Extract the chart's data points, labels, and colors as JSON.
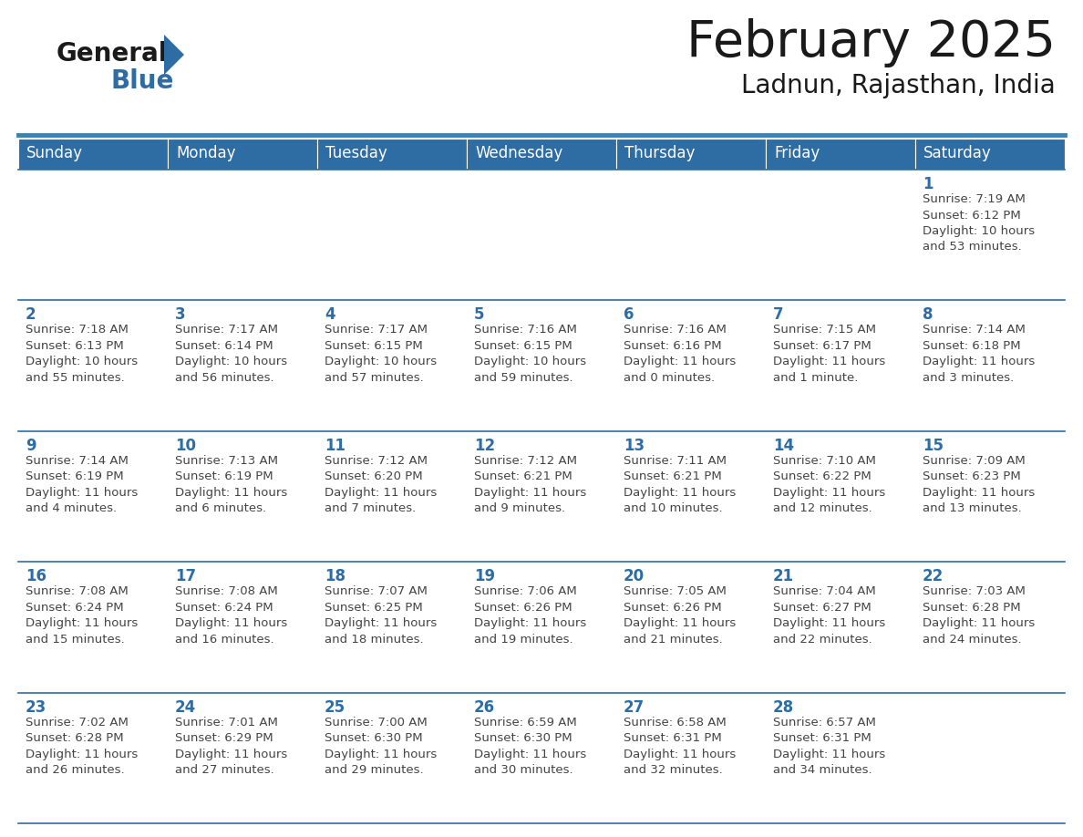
{
  "title": "February 2025",
  "subtitle": "Ladnun, Rajasthan, India",
  "header_bg_color": "#2E6DA4",
  "header_text_color": "#FFFFFF",
  "day_number_color": "#2E6DA4",
  "text_color": "#444444",
  "line_color": "#2E6DA4",
  "separator_color": "#4080B0",
  "bg_color": "#FFFFFF",
  "days_of_week": [
    "Sunday",
    "Monday",
    "Tuesday",
    "Wednesday",
    "Thursday",
    "Friday",
    "Saturday"
  ],
  "weeks": [
    [
      {
        "day": 0,
        "info": ""
      },
      {
        "day": 0,
        "info": ""
      },
      {
        "day": 0,
        "info": ""
      },
      {
        "day": 0,
        "info": ""
      },
      {
        "day": 0,
        "info": ""
      },
      {
        "day": 0,
        "info": ""
      },
      {
        "day": 1,
        "info": "Sunrise: 7:19 AM\nSunset: 6:12 PM\nDaylight: 10 hours\nand 53 minutes."
      }
    ],
    [
      {
        "day": 2,
        "info": "Sunrise: 7:18 AM\nSunset: 6:13 PM\nDaylight: 10 hours\nand 55 minutes."
      },
      {
        "day": 3,
        "info": "Sunrise: 7:17 AM\nSunset: 6:14 PM\nDaylight: 10 hours\nand 56 minutes."
      },
      {
        "day": 4,
        "info": "Sunrise: 7:17 AM\nSunset: 6:15 PM\nDaylight: 10 hours\nand 57 minutes."
      },
      {
        "day": 5,
        "info": "Sunrise: 7:16 AM\nSunset: 6:15 PM\nDaylight: 10 hours\nand 59 minutes."
      },
      {
        "day": 6,
        "info": "Sunrise: 7:16 AM\nSunset: 6:16 PM\nDaylight: 11 hours\nand 0 minutes."
      },
      {
        "day": 7,
        "info": "Sunrise: 7:15 AM\nSunset: 6:17 PM\nDaylight: 11 hours\nand 1 minute."
      },
      {
        "day": 8,
        "info": "Sunrise: 7:14 AM\nSunset: 6:18 PM\nDaylight: 11 hours\nand 3 minutes."
      }
    ],
    [
      {
        "day": 9,
        "info": "Sunrise: 7:14 AM\nSunset: 6:19 PM\nDaylight: 11 hours\nand 4 minutes."
      },
      {
        "day": 10,
        "info": "Sunrise: 7:13 AM\nSunset: 6:19 PM\nDaylight: 11 hours\nand 6 minutes."
      },
      {
        "day": 11,
        "info": "Sunrise: 7:12 AM\nSunset: 6:20 PM\nDaylight: 11 hours\nand 7 minutes."
      },
      {
        "day": 12,
        "info": "Sunrise: 7:12 AM\nSunset: 6:21 PM\nDaylight: 11 hours\nand 9 minutes."
      },
      {
        "day": 13,
        "info": "Sunrise: 7:11 AM\nSunset: 6:21 PM\nDaylight: 11 hours\nand 10 minutes."
      },
      {
        "day": 14,
        "info": "Sunrise: 7:10 AM\nSunset: 6:22 PM\nDaylight: 11 hours\nand 12 minutes."
      },
      {
        "day": 15,
        "info": "Sunrise: 7:09 AM\nSunset: 6:23 PM\nDaylight: 11 hours\nand 13 minutes."
      }
    ],
    [
      {
        "day": 16,
        "info": "Sunrise: 7:08 AM\nSunset: 6:24 PM\nDaylight: 11 hours\nand 15 minutes."
      },
      {
        "day": 17,
        "info": "Sunrise: 7:08 AM\nSunset: 6:24 PM\nDaylight: 11 hours\nand 16 minutes."
      },
      {
        "day": 18,
        "info": "Sunrise: 7:07 AM\nSunset: 6:25 PM\nDaylight: 11 hours\nand 18 minutes."
      },
      {
        "day": 19,
        "info": "Sunrise: 7:06 AM\nSunset: 6:26 PM\nDaylight: 11 hours\nand 19 minutes."
      },
      {
        "day": 20,
        "info": "Sunrise: 7:05 AM\nSunset: 6:26 PM\nDaylight: 11 hours\nand 21 minutes."
      },
      {
        "day": 21,
        "info": "Sunrise: 7:04 AM\nSunset: 6:27 PM\nDaylight: 11 hours\nand 22 minutes."
      },
      {
        "day": 22,
        "info": "Sunrise: 7:03 AM\nSunset: 6:28 PM\nDaylight: 11 hours\nand 24 minutes."
      }
    ],
    [
      {
        "day": 23,
        "info": "Sunrise: 7:02 AM\nSunset: 6:28 PM\nDaylight: 11 hours\nand 26 minutes."
      },
      {
        "day": 24,
        "info": "Sunrise: 7:01 AM\nSunset: 6:29 PM\nDaylight: 11 hours\nand 27 minutes."
      },
      {
        "day": 25,
        "info": "Sunrise: 7:00 AM\nSunset: 6:30 PM\nDaylight: 11 hours\nand 29 minutes."
      },
      {
        "day": 26,
        "info": "Sunrise: 6:59 AM\nSunset: 6:30 PM\nDaylight: 11 hours\nand 30 minutes."
      },
      {
        "day": 27,
        "info": "Sunrise: 6:58 AM\nSunset: 6:31 PM\nDaylight: 11 hours\nand 32 minutes."
      },
      {
        "day": 28,
        "info": "Sunrise: 6:57 AM\nSunset: 6:31 PM\nDaylight: 11 hours\nand 34 minutes."
      },
      {
        "day": 0,
        "info": ""
      }
    ]
  ],
  "title_fontsize": 40,
  "subtitle_fontsize": 20,
  "day_name_fontsize": 12,
  "day_number_fontsize": 12,
  "info_fontsize": 9.5,
  "logo_general_fontsize": 20,
  "logo_blue_fontsize": 20
}
